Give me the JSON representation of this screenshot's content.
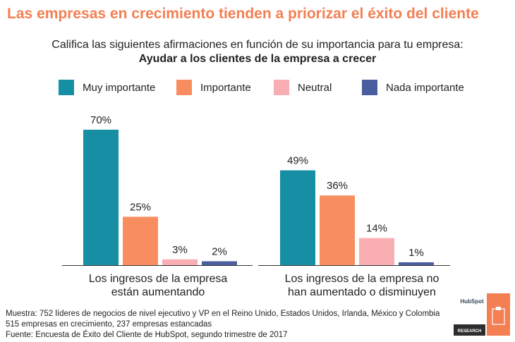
{
  "header": {
    "title": "Las empresas en crecimiento tienden a priorizar el éxito del cliente",
    "subtitle_line1": "Califica las siguientes afirmaciones en función de su importancia para tu empresa:",
    "subtitle_line2": "Ayudar a los clientes de la empresa a crecer"
  },
  "chart_data": {
    "type": "bar",
    "categories": [
      "Los ingresos de la empresa están aumentando",
      "Los ingresos de la empresa no han aumentado o disminuyen"
    ],
    "category_lines": [
      [
        "Los ingresos de la empresa",
        "están aumentando"
      ],
      [
        "Los ingresos de la empresa no",
        "han aumentado o disminuyen"
      ]
    ],
    "series": [
      {
        "name": "Muy importante",
        "color": "#168fa5",
        "values": [
          70,
          49
        ]
      },
      {
        "name": "Importante",
        "color": "#f88d5f",
        "values": [
          25,
          36
        ]
      },
      {
        "name": "Neutral",
        "color": "#f8aeb3",
        "values": [
          3,
          14
        ]
      },
      {
        "name": "Nada importante",
        "color": "#4a5d9e",
        "values": [
          2,
          1
        ]
      }
    ],
    "value_suffix": "%",
    "ylim": [
      0,
      80
    ],
    "grid": false,
    "legend": "top"
  },
  "footer": {
    "line1": "Muestra: 752 líderes de negocios de nivel ejecutivo y VP en el Reino Unido, Estados Unidos, Irlanda, México y Colombia",
    "line2": "515 empresas en crecimiento, 237 empresas estancadas",
    "line3": "Fuente: Encuesta de Éxito del Cliente de HubSpot, segundo trimestre de 2017"
  },
  "logo": {
    "brand": "HubSpot",
    "label": "RESEARCH",
    "accent": "#f47f52"
  }
}
